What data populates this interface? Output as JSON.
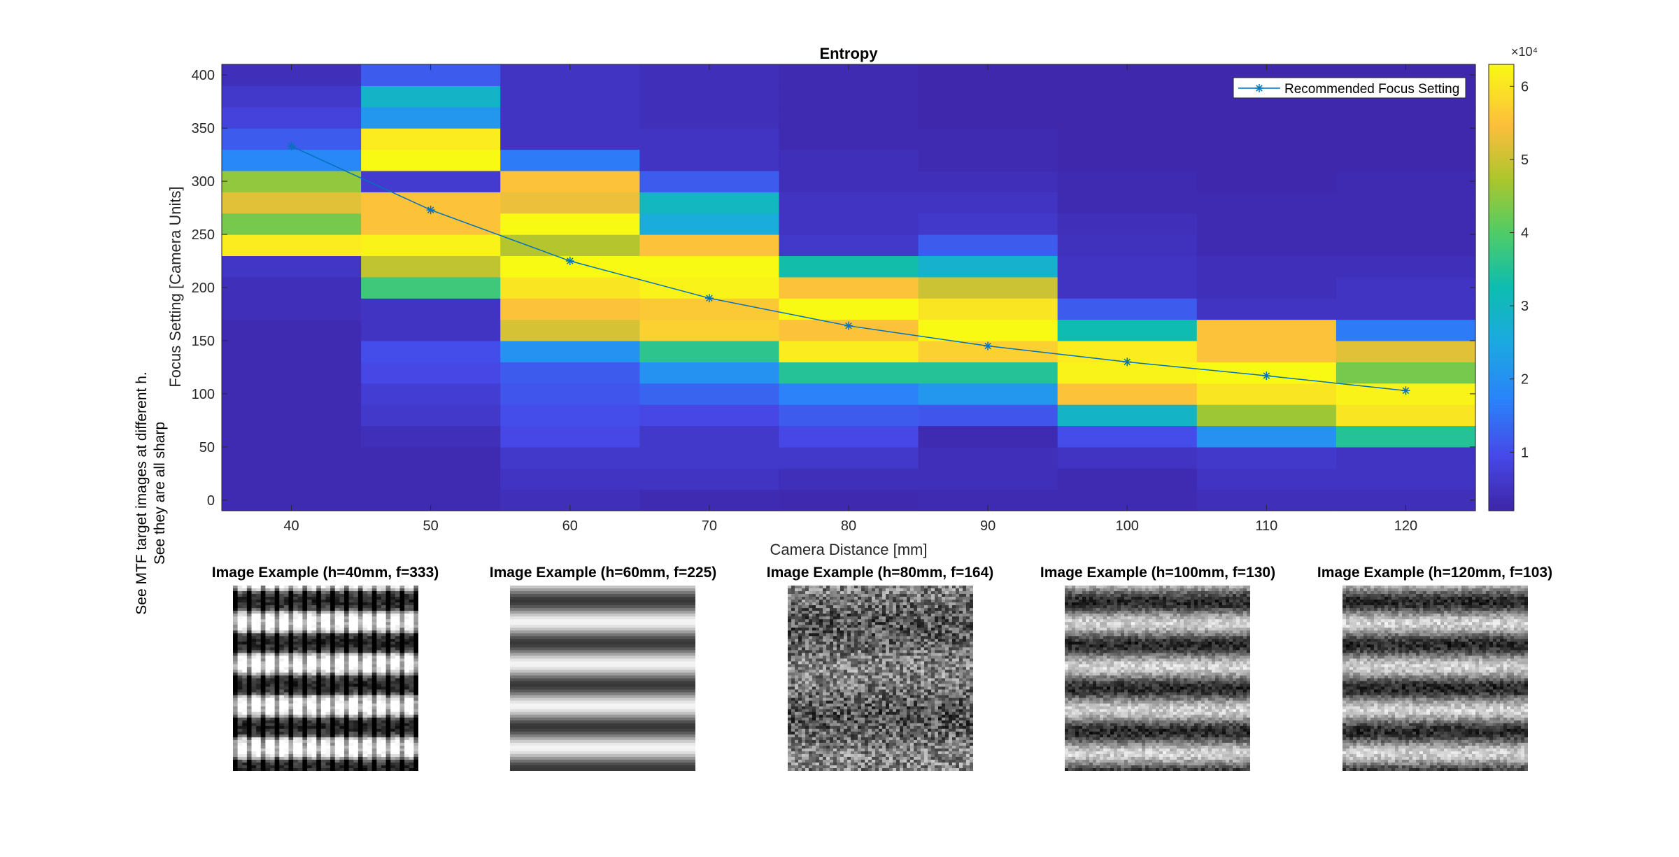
{
  "chart_data": {
    "type": "heatmap",
    "title": "Entropy",
    "xlabel": "Camera Distance [mm]",
    "ylabel": "Focus Setting [Camera Units]",
    "x": [
      40,
      50,
      60,
      70,
      80,
      90,
      100,
      110,
      120
    ],
    "x_ticks": [
      "40",
      "50",
      "60",
      "70",
      "80",
      "90",
      "100",
      "110",
      "120"
    ],
    "y_bins": [
      0,
      20,
      40,
      60,
      80,
      100,
      120,
      140,
      160,
      180,
      200,
      220,
      240,
      260,
      280,
      300,
      320,
      340,
      360,
      380,
      400
    ],
    "y_ticks": [
      "0",
      "50",
      "100",
      "150",
      "200",
      "250",
      "300",
      "350",
      "400"
    ],
    "xlim": [
      35,
      125
    ],
    "ylim": [
      -10,
      410
    ],
    "colorbar": {
      "min": 2000,
      "max": 63000,
      "exponent_label": "×10⁴",
      "ticks": [
        "1",
        "2",
        "3",
        "4",
        "5",
        "6"
      ],
      "tick_values": [
        10000,
        20000,
        30000,
        40000,
        50000,
        60000
      ]
    },
    "values": [
      [
        3000,
        3000,
        3000,
        3000,
        3000,
        3000,
        3000,
        3000,
        3000,
        4000,
        4000,
        5500,
        61000,
        43000,
        52000,
        45000,
        18000,
        12000,
        8000,
        6000,
        4000
      ],
      [
        3000,
        3000,
        3000,
        4000,
        6000,
        7000,
        9000,
        10000,
        5000,
        5000,
        38000,
        49000,
        62000,
        55000,
        55000,
        6500,
        64000,
        61000,
        21000,
        29000,
        12000
      ],
      [
        4000,
        5000,
        6000,
        9000,
        10000,
        11000,
        12000,
        20000,
        51000,
        55000,
        60000,
        63000,
        48000,
        63000,
        53000,
        55000,
        16000,
        5000,
        5000,
        5000,
        5000
      ],
      [
        3000,
        5000,
        6000,
        6000,
        9000,
        13000,
        20000,
        36000,
        57000,
        56000,
        62000,
        63000,
        55000,
        26000,
        30000,
        12000,
        5000,
        5000,
        4000,
        4000,
        4000
      ],
      [
        2800,
        4000,
        6000,
        9000,
        12000,
        17000,
        35000,
        61000,
        55000,
        63000,
        55000,
        33000,
        6000,
        5000,
        5000,
        4000,
        4000,
        3000,
        3000,
        3000,
        3000
      ],
      [
        3000,
        4000,
        4000,
        3000,
        11000,
        21000,
        35000,
        57000,
        63000,
        60000,
        50000,
        28000,
        12000,
        6000,
        5000,
        4000,
        3000,
        3000,
        2500,
        2500,
        2500
      ],
      [
        3000,
        3000,
        5000,
        10000,
        29000,
        55000,
        62000,
        61000,
        32000,
        12000,
        5000,
        5000,
        4500,
        4000,
        3000,
        3000,
        2500,
        2500,
        2500,
        2500,
        2500
      ],
      [
        4000,
        5000,
        6000,
        20000,
        46000,
        60000,
        63000,
        55000,
        55000,
        5000,
        4000,
        4000,
        3000,
        3000,
        3000,
        2500,
        2500,
        2500,
        2500,
        2500,
        2500
      ],
      [
        4000,
        5000,
        5000,
        35000,
        60000,
        62000,
        43000,
        52000,
        16000,
        5000,
        5000,
        4000,
        3000,
        3000,
        3000,
        3000,
        2500,
        2500,
        2500,
        2500,
        2500
      ]
    ],
    "series": [
      {
        "name": "Recommended Focus Setting",
        "x": [
          40,
          50,
          60,
          70,
          80,
          90,
          100,
          110,
          120
        ],
        "y": [
          333,
          273,
          225,
          190,
          164,
          145,
          130,
          117,
          103
        ],
        "color": "#0072BD",
        "marker": "asterisk"
      }
    ],
    "legend": {
      "placement": "top-right"
    },
    "colormap": "parula"
  },
  "examples": {
    "side_note_line1": "See MTF target images at different h.",
    "side_note_line2": "See they are all sharp",
    "items": [
      {
        "title": "Image Example (h=40mm, f=333)",
        "style": "grid"
      },
      {
        "title": "Image Example (h=60mm, f=225)",
        "style": "smooth"
      },
      {
        "title": "Image Example (h=80mm, f=164)",
        "style": "noisy"
      },
      {
        "title": "Image Example (h=100mm, f=130)",
        "style": "mid"
      },
      {
        "title": "Image Example (h=120mm, f=103)",
        "style": "mid2"
      }
    ]
  }
}
